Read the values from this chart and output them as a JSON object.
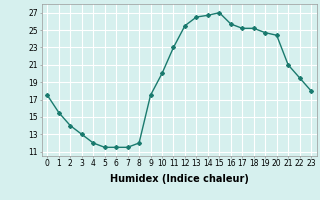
{
  "x": [
    0,
    1,
    2,
    3,
    4,
    5,
    6,
    7,
    8,
    9,
    10,
    11,
    12,
    13,
    14,
    15,
    16,
    17,
    18,
    19,
    20,
    21,
    22,
    23
  ],
  "y": [
    17.5,
    15.5,
    14.0,
    13.0,
    12.0,
    11.5,
    11.5,
    11.5,
    12.0,
    17.5,
    20.0,
    23.0,
    25.5,
    26.5,
    26.7,
    27.0,
    25.7,
    25.2,
    25.2,
    24.7,
    24.4,
    21.0,
    19.5,
    18.0
  ],
  "line_color": "#1a7a6e",
  "marker": "D",
  "marker_size": 2,
  "bg_color": "#d6f0ee",
  "grid_color": "#ffffff",
  "xlabel": "Humidex (Indice chaleur)",
  "xlim": [
    -0.5,
    23.5
  ],
  "ylim": [
    10.5,
    28.0
  ],
  "yticks": [
    11,
    13,
    15,
    17,
    19,
    21,
    23,
    25,
    27
  ],
  "xticks": [
    0,
    1,
    2,
    3,
    4,
    5,
    6,
    7,
    8,
    9,
    10,
    11,
    12,
    13,
    14,
    15,
    16,
    17,
    18,
    19,
    20,
    21,
    22,
    23
  ],
  "xlabel_fontsize": 7,
  "tick_fontsize": 5.5,
  "ylabel_fontsize": 6
}
